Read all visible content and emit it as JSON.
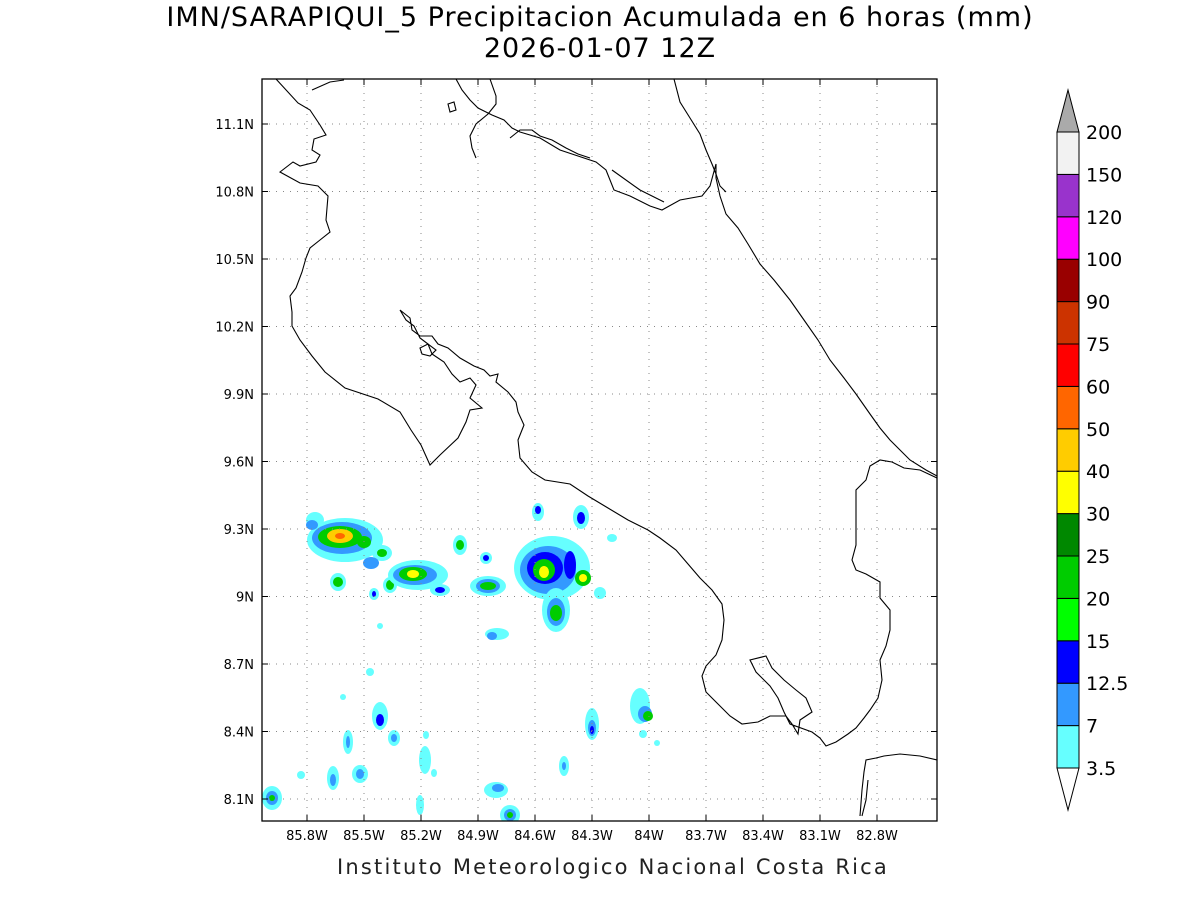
{
  "title": {
    "line1": "IMN/SARAPIQUI_5 Precipitacion Acumulada en 6 horas (mm)",
    "line2": "2026-01-07 12Z"
  },
  "footer": "Instituto Meteorologico Nacional Costa Rica",
  "map": {
    "lat_labels": [
      "11.1N",
      "10.8N",
      "10.5N",
      "10.2N",
      "9.9N",
      "9.6N",
      "9.3N",
      "9N",
      "8.7N",
      "8.4N",
      "8.1N"
    ],
    "lon_labels": [
      "85.8W",
      "85.5W",
      "85.2W",
      "84.9W",
      "84.6W",
      "84.3W",
      "84W",
      "83.7W",
      "83.4W",
      "83.1W",
      "82.8W"
    ]
  },
  "colorbar": {
    "labels": [
      "3.5",
      "7",
      "12.5",
      "15",
      "20",
      "25",
      "30",
      "40",
      "50",
      "60",
      "75",
      "90",
      "100",
      "120",
      "150",
      "200"
    ],
    "colors": [
      "#ffffff",
      "#66ffff",
      "#3399ff",
      "#0000ff",
      "#00ff00",
      "#00cc00",
      "#008800",
      "#ffff00",
      "#ffcc00",
      "#ff6600",
      "#ff0000",
      "#cc3300",
      "#990000",
      "#ff00ff",
      "#9933cc",
      "#f2f2f2",
      "#aaaaaa"
    ]
  },
  "legend_icons": {
    "top": "triangle-up-icon",
    "bottom": "triangle-down-icon"
  }
}
